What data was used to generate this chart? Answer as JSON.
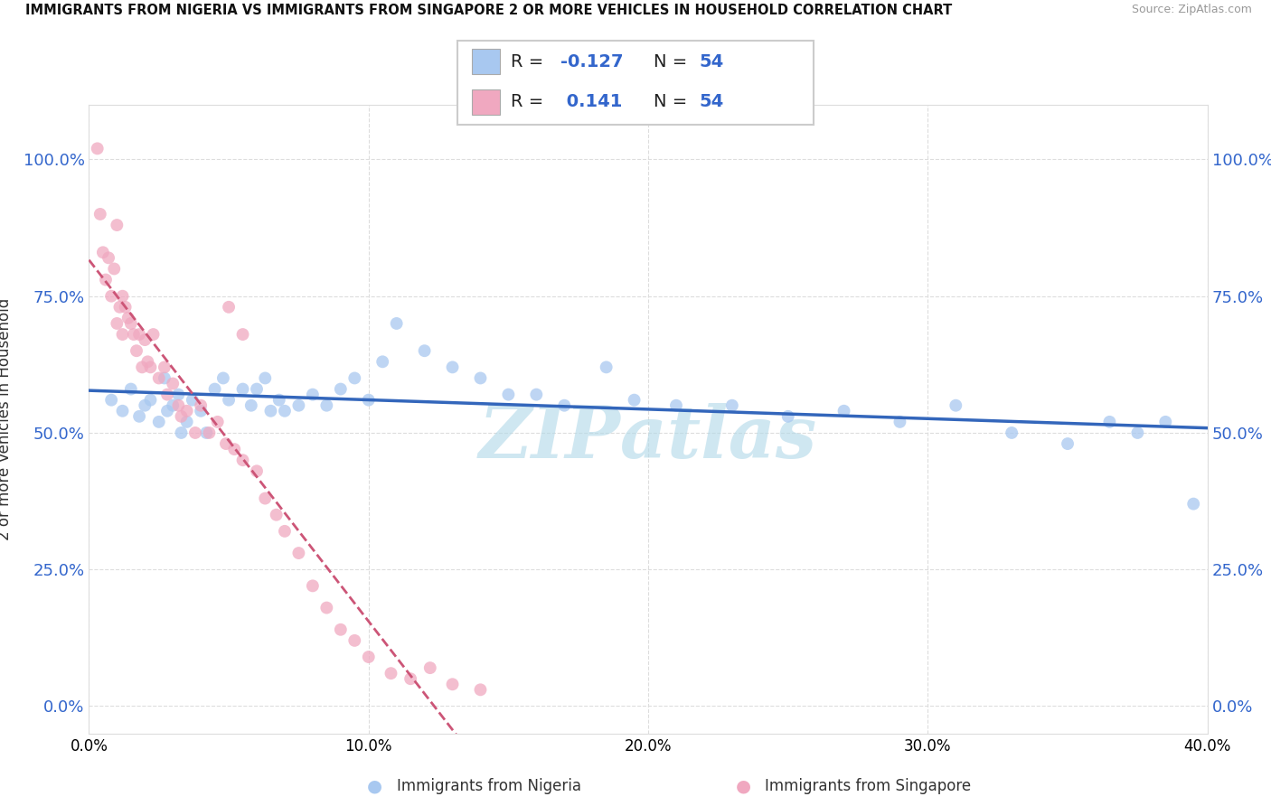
{
  "title": "IMMIGRANTS FROM NIGERIA VS IMMIGRANTS FROM SINGAPORE 2 OR MORE VEHICLES IN HOUSEHOLD CORRELATION CHART",
  "source": "Source: ZipAtlas.com",
  "xlabel_blue": "Immigrants from Nigeria",
  "xlabel_pink": "Immigrants from Singapore",
  "ylabel": "2 or more Vehicles in Household",
  "R_blue": -0.127,
  "R_pink": 0.141,
  "N_blue": 54,
  "N_pink": 54,
  "xlim": [
    0.0,
    0.4
  ],
  "ylim": [
    -0.05,
    1.1
  ],
  "yticks": [
    0.0,
    0.25,
    0.5,
    0.75,
    1.0
  ],
  "xticks": [
    0.0,
    0.1,
    0.2,
    0.3,
    0.4
  ],
  "color_blue": "#a8c8f0",
  "color_pink": "#f0a8c0",
  "line_blue": "#3366bb",
  "line_pink": "#cc5577",
  "watermark_color": "#b0d8e8",
  "blue_x": [
    0.008,
    0.012,
    0.015,
    0.018,
    0.02,
    0.022,
    0.025,
    0.027,
    0.028,
    0.03,
    0.032,
    0.033,
    0.035,
    0.037,
    0.04,
    0.042,
    0.045,
    0.048,
    0.05,
    0.055,
    0.058,
    0.06,
    0.063,
    0.065,
    0.068,
    0.07,
    0.075,
    0.08,
    0.085,
    0.09,
    0.095,
    0.1,
    0.105,
    0.11,
    0.12,
    0.13,
    0.14,
    0.15,
    0.16,
    0.17,
    0.185,
    0.195,
    0.21,
    0.23,
    0.25,
    0.27,
    0.29,
    0.31,
    0.33,
    0.35,
    0.365,
    0.375,
    0.385,
    0.395
  ],
  "blue_y": [
    0.56,
    0.54,
    0.58,
    0.53,
    0.55,
    0.56,
    0.52,
    0.6,
    0.54,
    0.55,
    0.57,
    0.5,
    0.52,
    0.56,
    0.54,
    0.5,
    0.58,
    0.6,
    0.56,
    0.58,
    0.55,
    0.58,
    0.6,
    0.54,
    0.56,
    0.54,
    0.55,
    0.57,
    0.55,
    0.58,
    0.6,
    0.56,
    0.63,
    0.7,
    0.65,
    0.62,
    0.6,
    0.57,
    0.57,
    0.55,
    0.62,
    0.56,
    0.55,
    0.55,
    0.53,
    0.54,
    0.52,
    0.55,
    0.5,
    0.48,
    0.52,
    0.5,
    0.52,
    0.37
  ],
  "pink_x": [
    0.003,
    0.004,
    0.005,
    0.006,
    0.007,
    0.008,
    0.009,
    0.01,
    0.011,
    0.012,
    0.013,
    0.014,
    0.015,
    0.016,
    0.017,
    0.018,
    0.019,
    0.02,
    0.021,
    0.022,
    0.023,
    0.025,
    0.027,
    0.028,
    0.03,
    0.032,
    0.033,
    0.035,
    0.038,
    0.04,
    0.043,
    0.046,
    0.049,
    0.052,
    0.055,
    0.06,
    0.063,
    0.067,
    0.07,
    0.075,
    0.08,
    0.085,
    0.09,
    0.095,
    0.1,
    0.108,
    0.115,
    0.122,
    0.13,
    0.14,
    0.05,
    0.055,
    0.01,
    0.012
  ],
  "pink_y": [
    1.02,
    0.9,
    0.83,
    0.78,
    0.82,
    0.75,
    0.8,
    0.7,
    0.73,
    0.68,
    0.73,
    0.71,
    0.7,
    0.68,
    0.65,
    0.68,
    0.62,
    0.67,
    0.63,
    0.62,
    0.68,
    0.6,
    0.62,
    0.57,
    0.59,
    0.55,
    0.53,
    0.54,
    0.5,
    0.55,
    0.5,
    0.52,
    0.48,
    0.47,
    0.45,
    0.43,
    0.38,
    0.35,
    0.32,
    0.28,
    0.22,
    0.18,
    0.14,
    0.12,
    0.09,
    0.06,
    0.05,
    0.07,
    0.04,
    0.03,
    0.73,
    0.68,
    0.88,
    0.75
  ]
}
